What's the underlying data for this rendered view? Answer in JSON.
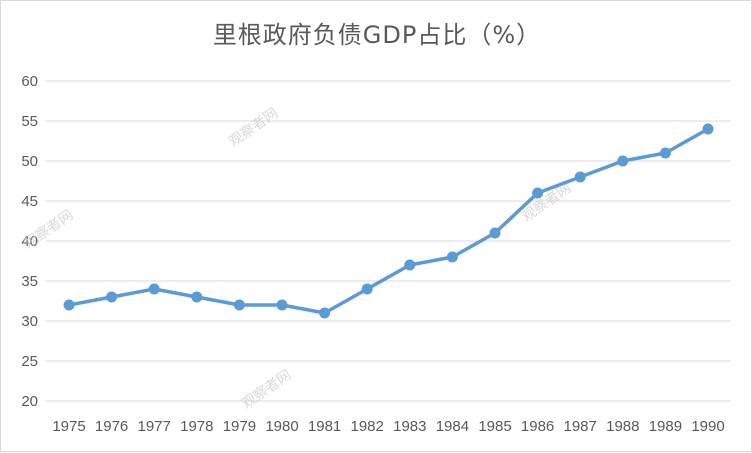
{
  "chart_data": {
    "type": "line",
    "title": "里根政府负债GDP占比（%）",
    "xlabel": "",
    "ylabel": "",
    "categories": [
      "1975",
      "1976",
      "1977",
      "1978",
      "1979",
      "1980",
      "1981",
      "1982",
      "1983",
      "1984",
      "1985",
      "1986",
      "1987",
      "1988",
      "1989",
      "1990"
    ],
    "series": [
      {
        "values": [
          32,
          33,
          34,
          33,
          32,
          32,
          31,
          34,
          37,
          38,
          41,
          46,
          48,
          50,
          51,
          54
        ]
      }
    ],
    "ylim": [
      20,
      60
    ],
    "yticks": [
      20,
      25,
      30,
      35,
      40,
      45,
      50,
      55,
      60
    ],
    "grid": true,
    "legend": "none",
    "line_color": "#5b9bd5",
    "grid_color": "#d9d9d9"
  },
  "watermarks": [
    "观察者网",
    "观察者网",
    "观察者网",
    "观察者网"
  ]
}
